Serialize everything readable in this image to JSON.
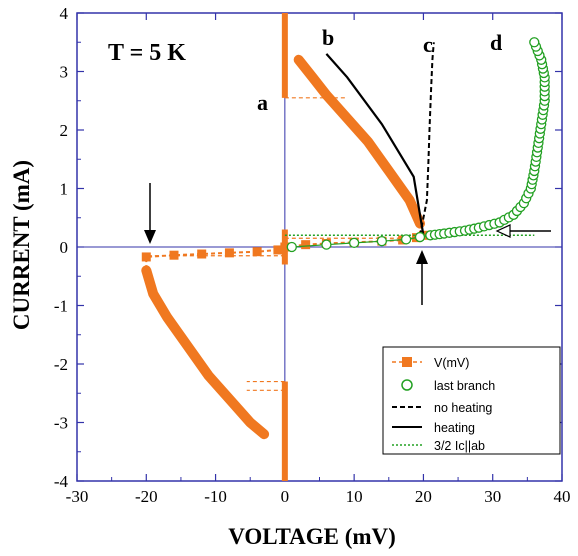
{
  "chart_data": {
    "type": "scatter",
    "title": "",
    "annotation_temperature": "T = 5 K",
    "xlabel": "VOLTAGE (mV)",
    "ylabel": "CURRENT (mA)",
    "xlim": [
      -30,
      40
    ],
    "ylim": [
      -4,
      4
    ],
    "xticks": [
      -30,
      -20,
      -10,
      0,
      10,
      20,
      30,
      40
    ],
    "yticks": [
      -4,
      -3,
      -2,
      -1,
      0,
      1,
      2,
      3,
      4
    ],
    "branch_labels": [
      "a",
      "b",
      "c",
      "d"
    ],
    "legend": {
      "position": "bottom-right",
      "entries": [
        "V(mV)",
        "last branch",
        "no heating",
        "heating",
        "3/2 Ic||ab"
      ]
    },
    "colors": {
      "v_series": "#f07820",
      "last_branch": "#22a022",
      "axis": "#3333aa",
      "heating": "#000000"
    },
    "series": [
      {
        "name": "V(mV)",
        "style": "orange squares, dashed",
        "points": [
          [
            0,
            0
          ],
          [
            3,
            0.04
          ],
          [
            6,
            0.06
          ],
          [
            10,
            0.08
          ],
          [
            14,
            0.1
          ],
          [
            17,
            0.12
          ],
          [
            19,
            0.16
          ],
          [
            20,
            0.2
          ],
          [
            19.5,
            0.4
          ],
          [
            18,
            0.8
          ],
          [
            15,
            1.3
          ],
          [
            12,
            1.8
          ],
          [
            9,
            2.2
          ],
          [
            6,
            2.6
          ],
          [
            4,
            2.9
          ],
          [
            2,
            3.2
          ],
          [
            -1,
            -0.05
          ],
          [
            -4,
            -0.08
          ],
          [
            -8,
            -0.1
          ],
          [
            -12,
            -0.12
          ],
          [
            -16,
            -0.14
          ],
          [
            -20,
            -0.17
          ],
          [
            -20,
            -0.4
          ],
          [
            -19,
            -0.8
          ],
          [
            -17,
            -1.2
          ],
          [
            -14,
            -1.7
          ],
          [
            -11,
            -2.2
          ],
          [
            -8,
            -2.6
          ],
          [
            -5,
            -3.0
          ],
          [
            -3,
            -3.2
          ]
        ]
      },
      {
        "name": "last branch",
        "style": "green open circles",
        "points": [
          [
            1,
            0.0
          ],
          [
            6,
            0.04
          ],
          [
            10,
            0.07
          ],
          [
            14,
            0.1
          ],
          [
            17.5,
            0.13
          ],
          [
            19.5,
            0.17
          ],
          [
            21,
            0.2
          ],
          [
            23,
            0.23
          ],
          [
            26,
            0.28
          ],
          [
            28,
            0.33
          ],
          [
            31,
            0.42
          ],
          [
            33,
            0.55
          ],
          [
            34.5,
            0.75
          ],
          [
            35.5,
            1.0
          ],
          [
            36,
            1.3
          ],
          [
            36.5,
            1.7
          ],
          [
            37,
            2.1
          ],
          [
            37.5,
            2.5
          ],
          [
            37.5,
            2.9
          ],
          [
            37,
            3.2
          ],
          [
            36,
            3.5
          ]
        ]
      },
      {
        "name": "no heating",
        "style": "black dashed",
        "points": [
          [
            19.5,
            0.2
          ],
          [
            20.5,
            0.8
          ],
          [
            20.7,
            1.4
          ],
          [
            20.9,
            2.1
          ],
          [
            21.1,
            2.7
          ],
          [
            21.3,
            3.2
          ],
          [
            21.5,
            3.5
          ]
        ]
      },
      {
        "name": "heating",
        "style": "black solid",
        "points": [
          [
            20,
            0.2
          ],
          [
            18.6,
            1.2
          ],
          [
            14,
            2.1
          ],
          [
            9,
            2.9
          ],
          [
            6,
            3.3
          ]
        ]
      },
      {
        "name": "3/2 Ic||ab",
        "style": "green dotted",
        "points": [
          [
            0,
            0.2
          ],
          [
            36,
            0.2
          ]
        ]
      }
    ]
  }
}
